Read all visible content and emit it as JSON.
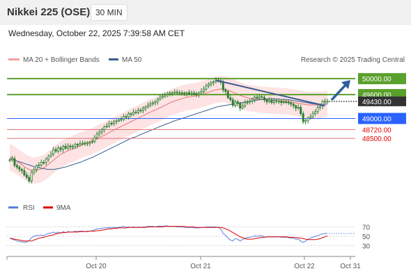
{
  "header": {
    "title": "Nikkei 225 (OSE)",
    "interval": "30 MIN"
  },
  "datetime": "Wednesday, October 22, 2025 7:39:58 AM CET",
  "legend": {
    "ma20": "MA 20 + Bollinger Bands",
    "ma50": "MA 50",
    "rsi": "RSI",
    "rsi_ma": "9MA"
  },
  "source": "Research © 2025 Trading Central",
  "colors": {
    "candle": "#2e7d32",
    "ma20": "#e57373",
    "bands_fill": "#fde0e0",
    "ma50": "#3a5c8f",
    "resistance": "#5aa02c",
    "pivot": "#2962ff",
    "support": "#e57373",
    "support_text": "#e00000",
    "last_price": "#333333",
    "trend_arrow": "#2f5f9e",
    "rsi": "#5a7fe0",
    "rsi_ma": "#e00000"
  },
  "chart_data": [
    {
      "type": "candlestick",
      "x_ticks": [
        "Oct 20",
        "Oct 21",
        "Oct 22",
        "Oct 31"
      ],
      "ylim": [
        47000,
        50300
      ],
      "price_levels": [
        {
          "label": "50000.00",
          "value": 50000,
          "kind": "resistance"
        },
        {
          "label": "49600.00",
          "value": 49600,
          "kind": "resistance"
        },
        {
          "label": "49430.00",
          "value": 49430,
          "kind": "last"
        },
        {
          "label": "49000.00",
          "value": 49000,
          "kind": "pivot"
        },
        {
          "label": "48720.00",
          "value": 48720,
          "kind": "support"
        },
        {
          "label": "48500.00",
          "value": 48500,
          "kind": "support"
        }
      ],
      "close_series": [
        47960,
        47990,
        47820,
        47780,
        47720,
        47690,
        47580,
        47520,
        47430,
        47650,
        47720,
        47810,
        47830,
        47900,
        47890,
        47980,
        48050,
        48100,
        48220,
        48180,
        48260,
        48220,
        48300,
        48250,
        48310,
        48280,
        48300,
        48350,
        48330,
        48370,
        48380,
        48370,
        48380,
        48400,
        48420,
        48520,
        48610,
        48660,
        48720,
        48790,
        48810,
        48880,
        48870,
        48920,
        48940,
        48960,
        48980,
        49050,
        49040,
        49120,
        49100,
        49160,
        49150,
        49210,
        49200,
        49260,
        49290,
        49330,
        49370,
        49390,
        49420,
        49480,
        49530,
        49560,
        49590,
        49620,
        49640,
        49650,
        49660,
        49640,
        49650,
        49640,
        49630,
        49650,
        49620,
        49640,
        49630,
        49600,
        49640,
        49680,
        49740,
        49820,
        49860,
        49900,
        49920,
        49960,
        49950,
        49910,
        49720,
        49680,
        49520,
        49470,
        49330,
        49420,
        49380,
        49260,
        49310,
        49400,
        49410,
        49440,
        49480,
        49540,
        49510,
        49550,
        49530,
        49470,
        49420,
        49460,
        49400,
        49450,
        49430,
        49440,
        49400,
        49420,
        49410,
        49390,
        49360,
        49320,
        49260,
        49280,
        49120,
        48920,
        48950,
        49010,
        49040,
        49120,
        49170,
        49280,
        49310,
        49430,
        49430,
        49430
      ],
      "ma20_series": [
        48030,
        48000,
        47960,
        47920,
        47880,
        47840,
        47790,
        47750,
        47720,
        47700,
        47690,
        47700,
        47710,
        47730,
        47760,
        47800,
        47850,
        47900,
        47950,
        48000,
        48050,
        48100,
        48130,
        48160,
        48190,
        48210,
        48240,
        48260,
        48290,
        48320,
        48340,
        48370,
        48390,
        48410,
        48430,
        48460,
        48490,
        48520,
        48550,
        48580,
        48610,
        48650,
        48680,
        48710,
        48740,
        48770,
        48800,
        48830,
        48860,
        48890,
        48920,
        48950,
        48980,
        49010,
        49040,
        49070,
        49100,
        49130,
        49160,
        49190,
        49210,
        49240,
        49270,
        49300,
        49330,
        49360,
        49390,
        49420,
        49440,
        49460,
        49480,
        49500,
        49510,
        49530,
        49540,
        49550,
        49560,
        49570,
        49590,
        49600,
        49620,
        49640,
        49660,
        49680,
        49700,
        49720,
        49730,
        49740,
        49740,
        49730,
        49710,
        49690,
        49660,
        49640,
        49610,
        49580,
        49560,
        49540,
        49520,
        49510,
        49500,
        49500,
        49490,
        49480,
        49470,
        49470,
        49460,
        49460,
        49450,
        49450,
        49450,
        49440,
        49440,
        49430,
        49430,
        49420,
        49410,
        49400,
        49390,
        49380,
        49370,
        49360,
        49350,
        49340,
        49340,
        49340,
        49340,
        49340,
        49340,
        49350,
        49360,
        49370
      ],
      "ma50_series": [
        47990,
        47970,
        47950,
        47930,
        47910,
        47890,
        47870,
        47850,
        47830,
        47810,
        47790,
        47770,
        47760,
        47750,
        47740,
        47730,
        47720,
        47720,
        47720,
        47730,
        47740,
        47750,
        47770,
        47780,
        47800,
        47820,
        47840,
        47860,
        47880,
        47900,
        47920,
        47950,
        47970,
        48000,
        48020,
        48050,
        48080,
        48110,
        48140,
        48170,
        48200,
        48230,
        48260,
        48290,
        48320,
        48350,
        48380,
        48410,
        48440,
        48470,
        48500,
        48520,
        48540,
        48570,
        48600,
        48620,
        48650,
        48670,
        48700,
        48720,
        48750,
        48770,
        48800,
        48820,
        48850,
        48870,
        48890,
        48920,
        48940,
        48960,
        48980,
        49000,
        49020,
        49040,
        49060,
        49080,
        49100,
        49120,
        49140,
        49160,
        49180,
        49200,
        49220,
        49240,
        49260,
        49280,
        49300,
        49310,
        49320,
        49330,
        49340,
        49350,
        49360,
        49370,
        49380,
        49390,
        49400,
        49410,
        49420,
        49430,
        49440,
        49450,
        49460,
        49470,
        49480,
        49480,
        49490,
        49490,
        49490,
        49490,
        49490,
        49490,
        49480,
        49480,
        49470,
        49470,
        49460,
        49450,
        49440,
        49430,
        49420,
        49410,
        49400,
        49390,
        49380,
        49370,
        49360,
        49360,
        49360,
        49360,
        49360,
        49360
      ],
      "bollinger_width": 330
    },
    {
      "type": "line",
      "ylim": [
        10,
        90
      ],
      "y_ticks": [
        70,
        50,
        30
      ],
      "series": [
        {
          "name": "RSI",
          "values": [
            46,
            44,
            42,
            40,
            39,
            38,
            37,
            38,
            41,
            47,
            50,
            52,
            51,
            53,
            51,
            54,
            56,
            57,
            59,
            57,
            59,
            57,
            60,
            58,
            60,
            59,
            59,
            61,
            60,
            61,
            61,
            60,
            61,
            61,
            62,
            64,
            66,
            66,
            67,
            68,
            68,
            69,
            68,
            69,
            69,
            69,
            70,
            71,
            69,
            70,
            69,
            70,
            69,
            70,
            69,
            70,
            70,
            71,
            71,
            71,
            70,
            71,
            72,
            71,
            72,
            72,
            71,
            71,
            71,
            70,
            70,
            70,
            69,
            69,
            69,
            69,
            68,
            68,
            68,
            69,
            69,
            70,
            70,
            70,
            70,
            70,
            69,
            66,
            56,
            52,
            46,
            42,
            40,
            45,
            44,
            40,
            43,
            46,
            47,
            48,
            49,
            51,
            50,
            51,
            51,
            49,
            48,
            50,
            48,
            49,
            49,
            49,
            48,
            48,
            48,
            47,
            46,
            46,
            44,
            44,
            40,
            37,
            40,
            44,
            46,
            48,
            50,
            51,
            54,
            55,
            56,
            56
          ]
        },
        {
          "name": "9MA",
          "values": [
            46,
            45,
            44,
            43,
            42,
            41,
            40,
            40,
            40,
            40,
            42,
            44,
            46,
            47,
            48,
            49,
            51,
            52,
            53,
            55,
            56,
            57,
            58,
            58,
            59,
            59,
            59,
            59,
            59,
            60,
            60,
            60,
            60,
            61,
            61,
            61,
            62,
            62,
            63,
            64,
            65,
            66,
            66,
            67,
            67,
            68,
            68,
            68,
            68,
            69,
            69,
            69,
            69,
            69,
            69,
            69,
            69,
            70,
            70,
            70,
            70,
            70,
            70,
            70,
            71,
            71,
            71,
            71,
            71,
            71,
            71,
            71,
            71,
            70,
            70,
            70,
            70,
            69,
            69,
            69,
            69,
            69,
            69,
            69,
            69,
            69,
            69,
            69,
            68,
            66,
            64,
            61,
            58,
            55,
            52,
            49,
            47,
            45,
            44,
            44,
            44,
            45,
            46,
            47,
            48,
            48,
            49,
            49,
            49,
            49,
            49,
            49,
            49,
            49,
            49,
            48,
            48,
            48,
            47,
            47,
            46,
            45,
            44,
            43,
            43,
            43,
            43,
            44,
            45,
            47,
            49,
            51
          ]
        }
      ]
    }
  ]
}
